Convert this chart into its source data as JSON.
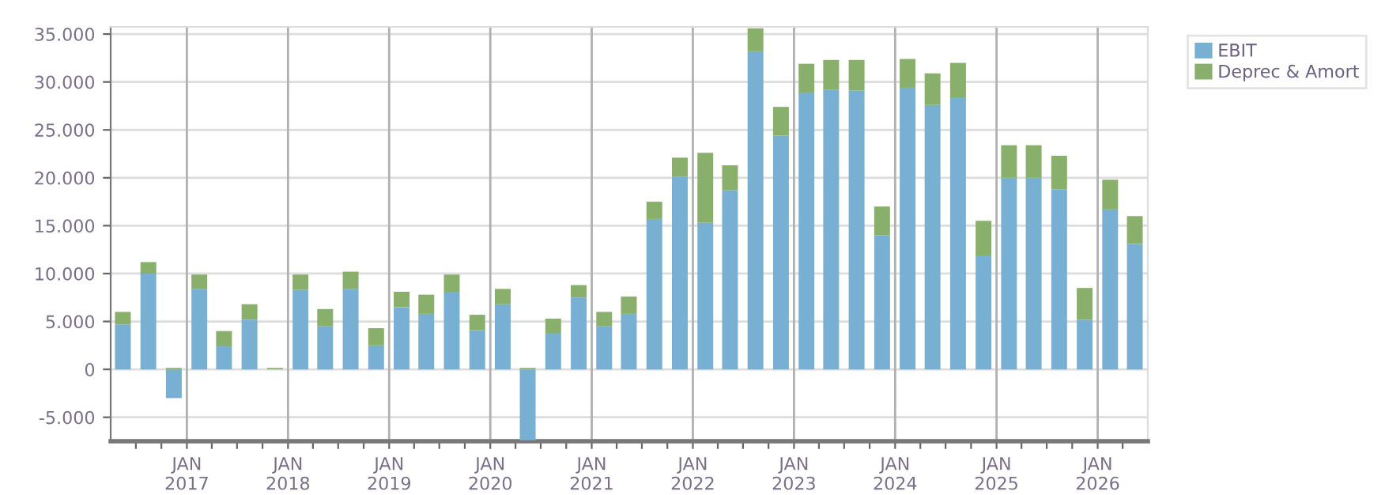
{
  "chart_data": {
    "type": "bar",
    "stacked": true,
    "x": [
      "2016-05-15",
      "2016-08-15",
      "2016-11-15",
      "2017-02-15",
      "2017-05-15",
      "2017-08-15",
      "2017-11-15",
      "2018-02-15",
      "2018-05-15",
      "2018-08-15",
      "2018-11-15",
      "2019-02-15",
      "2019-05-15",
      "2019-08-15",
      "2019-11-15",
      "2020-02-15",
      "2020-05-15",
      "2020-08-15",
      "2020-11-15",
      "2021-02-15",
      "2021-05-15",
      "2021-08-15",
      "2021-11-15",
      "2022-02-15",
      "2022-05-15",
      "2022-08-15",
      "2022-11-15",
      "2023-02-15",
      "2023-05-15",
      "2023-08-15",
      "2023-11-15",
      "2024-02-15",
      "2024-05-15",
      "2024-08-15",
      "2024-11-15",
      "2025-02-15",
      "2025-05-15",
      "2025-08-15",
      "2025-11-15",
      "2026-02-15",
      "2026-05-15"
    ],
    "series": [
      {
        "name": "EBIT",
        "color": "#78b0d4",
        "values": [
          4700,
          10000,
          -3000,
          8400,
          2400,
          5200,
          0,
          8300,
          4500,
          8400,
          2500,
          6500,
          5800,
          8100,
          4100,
          6800,
          -7400,
          3800,
          7500,
          4500,
          5800,
          15700,
          20100,
          15300,
          18700,
          33200,
          24400,
          28900,
          29200,
          29100,
          14000,
          29400,
          27600,
          28400,
          11900,
          20000,
          20000,
          18800,
          5200,
          16700,
          13100
        ]
      },
      {
        "name": "Deprec & Amort",
        "color": "#88b06a",
        "values": [
          1300,
          1200,
          150,
          1500,
          1600,
          1600,
          150,
          1600,
          1800,
          1800,
          1800,
          1600,
          2000,
          1800,
          1600,
          1600,
          150,
          1500,
          1300,
          1500,
          1800,
          1800,
          2000,
          7300,
          2600,
          2400,
          3000,
          3000,
          3100,
          3200,
          3000,
          3000,
          3300,
          3600,
          3600,
          3400,
          3400,
          3500,
          3300,
          3100,
          2900
        ]
      }
    ],
    "xlim": [
      "2016-04-01",
      "2026-07-01"
    ],
    "xticks": [
      {
        "value": "2016-07-01",
        "label": null
      },
      {
        "value": "2016-10-01",
        "label": null
      },
      {
        "value": "2017-01-01",
        "label": "JAN\n2017"
      },
      {
        "value": "2017-04-01",
        "label": null
      },
      {
        "value": "2017-07-01",
        "label": null
      },
      {
        "value": "2017-10-01",
        "label": null
      },
      {
        "value": "2018-01-01",
        "label": "JAN\n2018"
      },
      {
        "value": "2018-04-01",
        "label": null
      },
      {
        "value": "2018-07-01",
        "label": null
      },
      {
        "value": "2018-10-01",
        "label": null
      },
      {
        "value": "2019-01-01",
        "label": "JAN\n2019"
      },
      {
        "value": "2019-04-01",
        "label": null
      },
      {
        "value": "2019-07-01",
        "label": null
      },
      {
        "value": "2019-10-01",
        "label": null
      },
      {
        "value": "2020-01-01",
        "label": "JAN\n2020"
      },
      {
        "value": "2020-04-01",
        "label": null
      },
      {
        "value": "2020-07-01",
        "label": null
      },
      {
        "value": "2020-10-01",
        "label": null
      },
      {
        "value": "2021-01-01",
        "label": "JAN\n2021"
      },
      {
        "value": "2021-04-01",
        "label": null
      },
      {
        "value": "2021-07-01",
        "label": null
      },
      {
        "value": "2021-10-01",
        "label": null
      },
      {
        "value": "2022-01-01",
        "label": "JAN\n2022"
      },
      {
        "value": "2022-04-01",
        "label": null
      },
      {
        "value": "2022-07-01",
        "label": null
      },
      {
        "value": "2022-10-01",
        "label": null
      },
      {
        "value": "2023-01-01",
        "label": "JAN\n2023"
      },
      {
        "value": "2023-04-01",
        "label": null
      },
      {
        "value": "2023-07-01",
        "label": null
      },
      {
        "value": "2023-10-01",
        "label": null
      },
      {
        "value": "2024-01-01",
        "label": "JAN\n2024"
      },
      {
        "value": "2024-04-01",
        "label": null
      },
      {
        "value": "2024-07-01",
        "label": null
      },
      {
        "value": "2024-10-01",
        "label": null
      },
      {
        "value": "2025-01-01",
        "label": "JAN\n2025"
      },
      {
        "value": "2025-04-01",
        "label": null
      },
      {
        "value": "2025-07-01",
        "label": null
      },
      {
        "value": "2025-10-01",
        "label": null
      },
      {
        "value": "2026-01-01",
        "label": "JAN\n2026"
      },
      {
        "value": "2026-04-01",
        "label": null
      }
    ],
    "ylim": [
      -7500,
      35750
    ],
    "yticks": [
      {
        "value": -5000,
        "label": "-5.000"
      },
      {
        "value": 0,
        "label": "0"
      },
      {
        "value": 5000,
        "label": "5.000"
      },
      {
        "value": 10000,
        "label": "10.000"
      },
      {
        "value": 15000,
        "label": "15.000"
      },
      {
        "value": 20000,
        "label": "20.000"
      },
      {
        "value": 25000,
        "label": "25.000"
      },
      {
        "value": 30000,
        "label": "30.000"
      },
      {
        "value": 35000,
        "label": "35.000"
      }
    ],
    "grid": true,
    "legend": "top right"
  }
}
